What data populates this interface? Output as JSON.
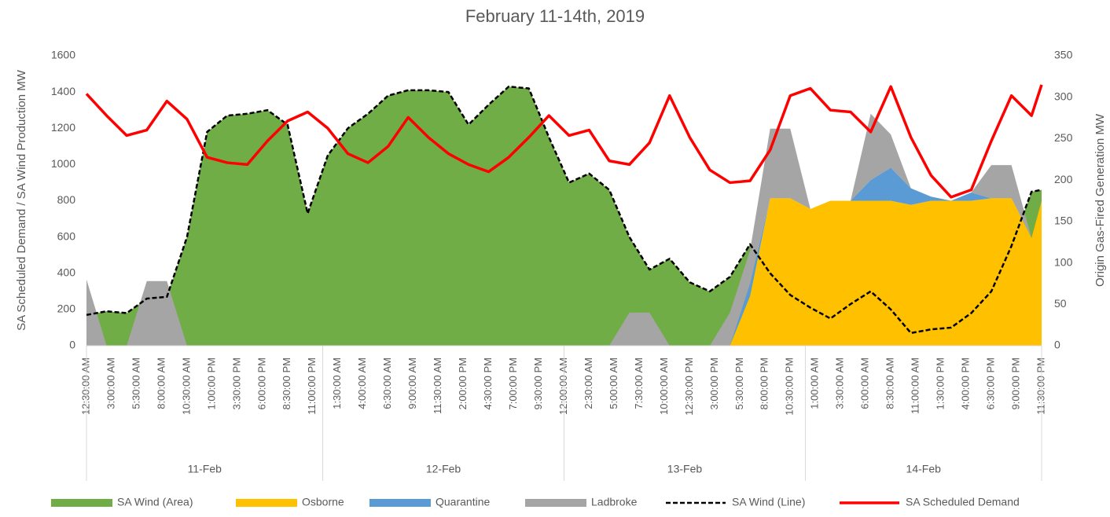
{
  "chart_data": {
    "type": "combo",
    "title": "February 11-14th, 2019",
    "y_label": "SA Scheduled Demand / SA Wind Production MW",
    "y2_label": "Origin Gas-Fired Generation MW",
    "legend": "bottom",
    "grid": false,
    "xlim": [
      0.5,
      95.5
    ],
    "ylim": [
      0,
      1600
    ],
    "yticks": [
      0,
      200,
      400,
      600,
      800,
      1000,
      1200,
      1400,
      1600
    ],
    "y2lim": [
      0,
      350
    ],
    "y2ticks": [
      0,
      50,
      100,
      150,
      200,
      250,
      300,
      350
    ],
    "x": [
      0.5,
      2.5,
      4.5,
      6.5,
      8.5,
      10.5,
      12.5,
      14.5,
      16.5,
      18.5,
      20.5,
      22.5,
      24.5,
      26.5,
      28.5,
      30.5,
      32.5,
      34.5,
      36.5,
      38.5,
      40.5,
      42.5,
      44.5,
      46.5,
      48.5,
      50.5,
      52.5,
      54.5,
      56.5,
      58.5,
      60.5,
      62.5,
      64.5,
      66.5,
      68.5,
      70.5,
      72.5,
      74.5,
      76.5,
      78.5,
      80.5,
      82.5,
      84.5,
      86.5,
      88.5,
      90.5,
      92.5,
      94.5,
      95.5
    ],
    "xticks": [
      {
        "value": 0.5,
        "label": "12:30:00 AM"
      },
      {
        "value": 3,
        "label": "3:00:00 AM"
      },
      {
        "value": 5.5,
        "label": "5:30:00 AM"
      },
      {
        "value": 8,
        "label": "8:00:00 AM"
      },
      {
        "value": 10.5,
        "label": "10:30:00 AM"
      },
      {
        "value": 13,
        "label": "1:00:00 PM"
      },
      {
        "value": 15.5,
        "label": "3:30:00 PM"
      },
      {
        "value": 18,
        "label": "6:00:00 PM"
      },
      {
        "value": 20.5,
        "label": "8:30:00 PM"
      },
      {
        "value": 23,
        "label": "11:00:00 PM"
      },
      {
        "value": 25.5,
        "label": "1:30:00 AM"
      },
      {
        "value": 28,
        "label": "4:00:00 AM"
      },
      {
        "value": 30.5,
        "label": "6:30:00 AM"
      },
      {
        "value": 33,
        "label": "9:00:00 AM"
      },
      {
        "value": 35.5,
        "label": "11:30:00 AM"
      },
      {
        "value": 38,
        "label": "2:00:00 PM"
      },
      {
        "value": 40.5,
        "label": "4:30:00 PM"
      },
      {
        "value": 43,
        "label": "7:00:00 PM"
      },
      {
        "value": 45.5,
        "label": "9:30:00 PM"
      },
      {
        "value": 48,
        "label": "12:00:00 AM"
      },
      {
        "value": 50.5,
        "label": "2:30:00 AM"
      },
      {
        "value": 53,
        "label": "5:00:00 AM"
      },
      {
        "value": 55.5,
        "label": "7:30:00 AM"
      },
      {
        "value": 58,
        "label": "10:00:00 AM"
      },
      {
        "value": 60.5,
        "label": "12:30:00 PM"
      },
      {
        "value": 63,
        "label": "3:00:00 PM"
      },
      {
        "value": 65.5,
        "label": "5:30:00 PM"
      },
      {
        "value": 68,
        "label": "8:00:00 PM"
      },
      {
        "value": 70.5,
        "label": "10:30:00 PM"
      },
      {
        "value": 73,
        "label": "1:00:00 AM"
      },
      {
        "value": 75.5,
        "label": "3:30:00 AM"
      },
      {
        "value": 78,
        "label": "6:00:00 AM"
      },
      {
        "value": 80.5,
        "label": "8:30:00 AM"
      },
      {
        "value": 83,
        "label": "11:00:00 AM"
      },
      {
        "value": 85.5,
        "label": "1:30:00 PM"
      },
      {
        "value": 88,
        "label": "4:00:00 PM"
      },
      {
        "value": 90.5,
        "label": "6:30:00 PM"
      },
      {
        "value": 93,
        "label": "9:00:00 PM"
      },
      {
        "value": 95.5,
        "label": "11:30:00 PM"
      }
    ],
    "day_groups": [
      {
        "label": "11-Feb",
        "from": 0,
        "to": 24
      },
      {
        "label": "12-Feb",
        "from": 24,
        "to": 48
      },
      {
        "label": "13-Feb",
        "from": 48,
        "to": 72
      },
      {
        "label": "14-Feb",
        "from": 72,
        "to": 96
      }
    ],
    "series": [
      {
        "name": "SA Wind (Area)",
        "kind": "area",
        "axis": "y",
        "color": "#70ad47",
        "values": [
          170,
          190,
          180,
          260,
          270,
          600,
          1180,
          1270,
          1280,
          1300,
          1220,
          730,
          1050,
          1200,
          1280,
          1380,
          1410,
          1410,
          1400,
          1220,
          1330,
          1430,
          1420,
          1150,
          900,
          950,
          860,
          600,
          420,
          480,
          350,
          300,
          380,
          560,
          400,
          280,
          210,
          150,
          230,
          300,
          200,
          70,
          90,
          100,
          180,
          300,
          550,
          850,
          860
        ]
      },
      {
        "name": "Osborne",
        "kind": "area",
        "stack": true,
        "axis": "y2",
        "color": "#ffc000",
        "values": [
          0,
          0,
          0,
          0,
          0,
          0,
          0,
          0,
          0,
          0,
          0,
          0,
          0,
          0,
          0,
          0,
          0,
          0,
          0,
          0,
          0,
          0,
          0,
          0,
          0,
          0,
          0,
          0,
          0,
          0,
          0,
          0,
          0,
          60,
          178,
          178,
          165,
          175,
          175,
          175,
          175,
          170,
          175,
          175,
          175,
          178,
          178,
          130,
          175
        ]
      },
      {
        "name": "Quarantine",
        "kind": "area",
        "stack": true,
        "axis": "y2",
        "color": "#5b9bd5",
        "values": [
          0,
          0,
          0,
          0,
          0,
          0,
          0,
          0,
          0,
          0,
          0,
          0,
          0,
          0,
          0,
          0,
          0,
          0,
          0,
          0,
          0,
          0,
          0,
          0,
          0,
          0,
          0,
          0,
          0,
          0,
          0,
          0,
          0,
          15,
          0,
          0,
          0,
          0,
          0,
          25,
          40,
          20,
          5,
          0,
          10,
          0,
          0,
          0,
          0
        ]
      },
      {
        "name": "Ladbroke",
        "kind": "area",
        "stack": true,
        "axis": "y2",
        "color": "#a5a5a5",
        "values": [
          80,
          0,
          0,
          78,
          78,
          0,
          0,
          0,
          0,
          0,
          0,
          0,
          0,
          0,
          0,
          0,
          0,
          0,
          0,
          0,
          0,
          0,
          0,
          0,
          0,
          0,
          0,
          40,
          40,
          0,
          0,
          0,
          40,
          40,
          84,
          84,
          0,
          0,
          0,
          80,
          40,
          0,
          0,
          0,
          0,
          40,
          40,
          0,
          0
        ]
      },
      {
        "name": "SA Wind (Line)",
        "kind": "line",
        "dash": true,
        "axis": "y",
        "color": "#000000",
        "values": [
          170,
          190,
          180,
          260,
          270,
          600,
          1180,
          1270,
          1280,
          1300,
          1220,
          730,
          1050,
          1200,
          1280,
          1380,
          1410,
          1410,
          1400,
          1220,
          1330,
          1430,
          1420,
          1150,
          900,
          950,
          860,
          600,
          420,
          480,
          350,
          300,
          380,
          560,
          400,
          280,
          210,
          150,
          230,
          300,
          200,
          70,
          90,
          100,
          180,
          300,
          550,
          850,
          860
        ]
      },
      {
        "name": "SA Scheduled Demand",
        "kind": "line",
        "axis": "y",
        "color": "#ff0000",
        "values": [
          1390,
          1270,
          1160,
          1190,
          1350,
          1250,
          1040,
          1010,
          1000,
          1130,
          1240,
          1290,
          1200,
          1060,
          1010,
          1100,
          1260,
          1150,
          1060,
          1000,
          960,
          1040,
          1150,
          1270,
          1160,
          1190,
          1020,
          1000,
          1120,
          1380,
          1150,
          970,
          900,
          910,
          1080,
          1380,
          1420,
          1300,
          1290,
          1180,
          1430,
          1150,
          940,
          820,
          860,
          1130,
          1380,
          1270,
          1440
        ]
      }
    ]
  }
}
